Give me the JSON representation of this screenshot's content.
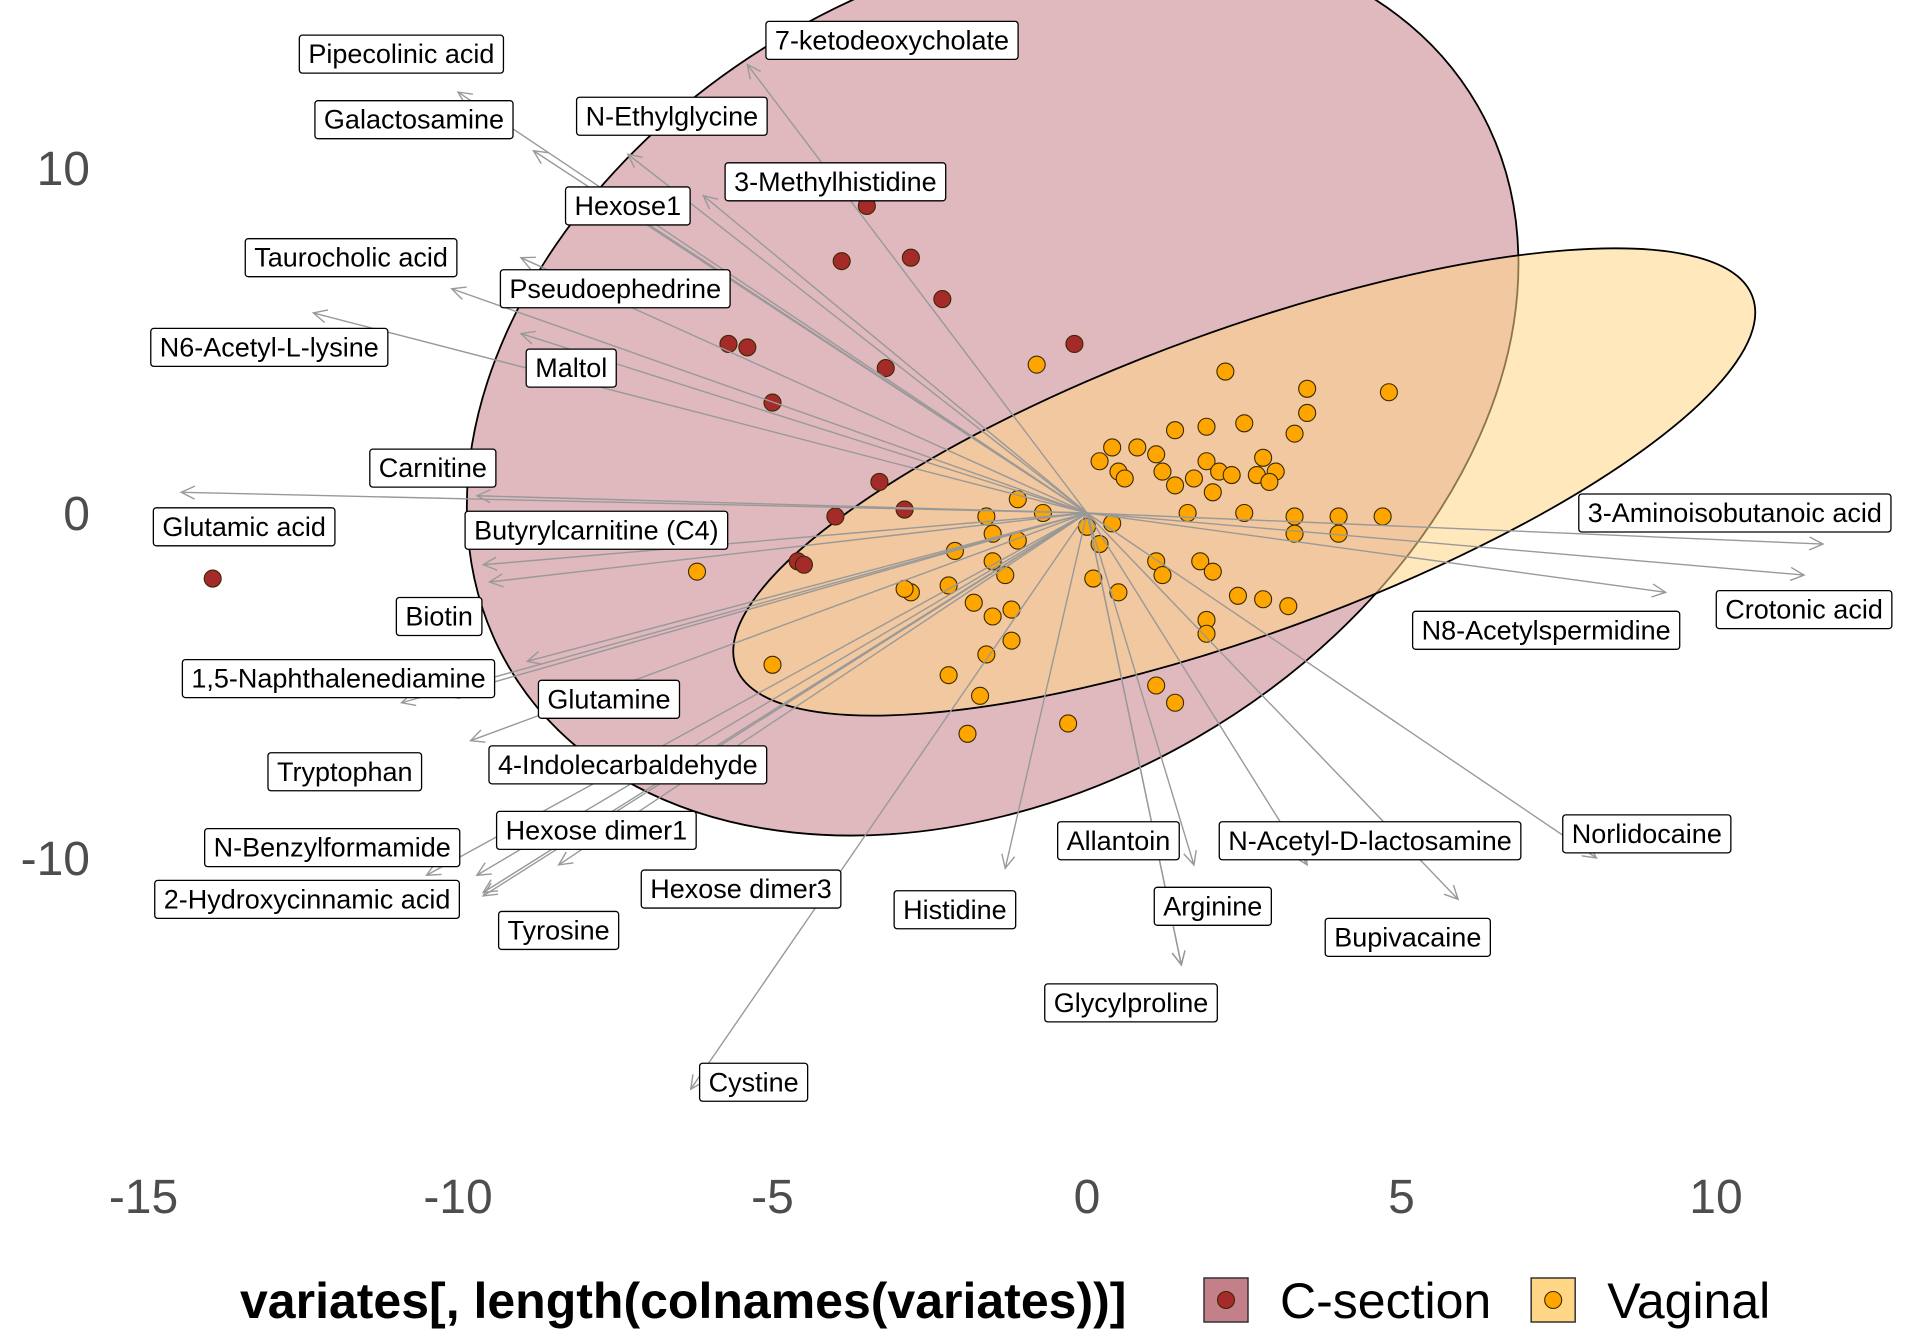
{
  "chart_data": {
    "type": "scatter",
    "title": "",
    "xlabel": "",
    "ylabel": "",
    "xlim": [
      -15.2,
      13
    ],
    "ylim": [
      -17.5,
      14.5
    ],
    "x_ticks": [
      -15,
      -10,
      -5,
      0,
      5,
      10
    ],
    "x_tick_labels": [
      "-15",
      "-10",
      "-5",
      "0",
      "5",
      "10"
    ],
    "y_ticks": [
      -10,
      0,
      10
    ],
    "y_tick_labels": [
      "-10",
      "0",
      "10"
    ],
    "grid": false,
    "legend": {
      "position": "bottom",
      "title": "variates[, length(colnames(variates))]",
      "entries": [
        "C-section",
        "Vaginal"
      ]
    },
    "colors": {
      "csection_point": "#a52a2a",
      "csection_ellipse": "#c48088",
      "vaginal_point": "#ffa500",
      "vaginal_ellipse": "#ffd685",
      "arrow": "#999999"
    },
    "ellipses": [
      {
        "name": "C-section",
        "cx": -1.5,
        "cy": 3.7,
        "rx": 8.9,
        "ry": 11.8,
        "angle_deg": 30
      },
      {
        "name": "Vaginal",
        "cx": 2.5,
        "cy": 0.9,
        "rx": 8.6,
        "ry": 4.4,
        "angle_deg": 20
      }
    ],
    "series": [
      {
        "name": "C-section",
        "points": [
          [
            -3.5,
            8.9
          ],
          [
            -3.9,
            7.3
          ],
          [
            -2.8,
            7.4
          ],
          [
            -2.3,
            6.2
          ],
          [
            -5.7,
            4.9
          ],
          [
            -5.4,
            4.8
          ],
          [
            -3.2,
            4.2
          ],
          [
            -0.2,
            4.9
          ],
          [
            -5.0,
            3.2
          ],
          [
            -3.3,
            0.9
          ],
          [
            -2.9,
            0.1
          ],
          [
            -4.0,
            -0.1
          ],
          [
            -4.6,
            -1.4
          ],
          [
            -4.5,
            -1.5
          ],
          [
            -13.9,
            -1.9
          ]
        ]
      },
      {
        "name": "Vaginal",
        "points": [
          [
            -0.8,
            4.3
          ],
          [
            2.2,
            4.1
          ],
          [
            3.5,
            3.6
          ],
          [
            4.8,
            3.5
          ],
          [
            3.5,
            2.9
          ],
          [
            2.5,
            2.6
          ],
          [
            1.4,
            2.4
          ],
          [
            1.9,
            2.5
          ],
          [
            3.3,
            2.3
          ],
          [
            0.4,
            1.9
          ],
          [
            0.8,
            1.9
          ],
          [
            1.1,
            1.7
          ],
          [
            1.9,
            1.5
          ],
          [
            2.8,
            1.6
          ],
          [
            0.2,
            1.5
          ],
          [
            0.5,
            1.2
          ],
          [
            1.2,
            1.2
          ],
          [
            2.1,
            1.2
          ],
          [
            2.7,
            1.1
          ],
          [
            3.0,
            1.2
          ],
          [
            0.6,
            1.0
          ],
          [
            1.7,
            1.0
          ],
          [
            2.3,
            1.1
          ],
          [
            1.4,
            0.8
          ],
          [
            2.9,
            0.9
          ],
          [
            2.0,
            0.6
          ],
          [
            -1.1,
            0.4
          ],
          [
            1.6,
            0.0
          ],
          [
            2.5,
            0.0
          ],
          [
            3.3,
            -0.1
          ],
          [
            4.0,
            -0.1
          ],
          [
            4.7,
            -0.1
          ],
          [
            0.4,
            -0.3
          ],
          [
            -1.6,
            -0.1
          ],
          [
            -1.5,
            -0.6
          ],
          [
            -1.1,
            -0.8
          ],
          [
            -0.7,
            0.0
          ],
          [
            3.3,
            -0.6
          ],
          [
            4.0,
            -0.6
          ],
          [
            0.0,
            -0.4
          ],
          [
            0.2,
            -0.9
          ],
          [
            -2.1,
            -1.1
          ],
          [
            -1.5,
            -1.4
          ],
          [
            1.1,
            -1.4
          ],
          [
            1.8,
            -1.4
          ],
          [
            2.0,
            -1.7
          ],
          [
            -6.2,
            -1.7
          ],
          [
            -2.2,
            -2.1
          ],
          [
            -1.3,
            -1.8
          ],
          [
            0.1,
            -1.9
          ],
          [
            -2.8,
            -2.3
          ],
          [
            -1.8,
            -2.6
          ],
          [
            -1.2,
            -2.8
          ],
          [
            -1.5,
            -3.0
          ],
          [
            0.5,
            -2.3
          ],
          [
            2.4,
            -2.4
          ],
          [
            1.2,
            -1.8
          ],
          [
            2.8,
            -2.5
          ],
          [
            -2.9,
            -2.2
          ],
          [
            3.2,
            -2.7
          ],
          [
            1.9,
            -3.1
          ],
          [
            1.9,
            -3.5
          ],
          [
            -1.2,
            -3.7
          ],
          [
            -1.6,
            -4.1
          ],
          [
            -5.0,
            -4.4
          ],
          [
            -2.2,
            -4.7
          ],
          [
            1.1,
            -5.0
          ],
          [
            -1.7,
            -5.3
          ],
          [
            1.4,
            -5.5
          ],
          [
            -1.9,
            -6.4
          ],
          [
            -0.3,
            -6.1
          ]
        ]
      }
    ],
    "variables": [
      {
        "name": "Pipecolinic acid",
        "arrow": [
          -10.0,
          12.2
        ],
        "label": [
          -10.9,
          13.3
        ]
      },
      {
        "name": "7-ketodeoxycholate",
        "arrow": [
          -5.4,
          13.0
        ],
        "label": [
          -3.1,
          13.7
        ]
      },
      {
        "name": "Galactosamine",
        "arrow": [
          -8.8,
          10.5
        ],
        "label": [
          -10.7,
          11.4
        ]
      },
      {
        "name": "N-Ethylglycine",
        "arrow": [
          -7.3,
          10.4
        ],
        "label": [
          -6.6,
          11.5
        ]
      },
      {
        "name": "3-Methylhistidine",
        "arrow": [
          -6.1,
          9.2
        ],
        "label": [
          -4.0,
          9.6
        ]
      },
      {
        "name": "Hexose1",
        "arrow": [
          -7.5,
          9.0
        ],
        "label": [
          -7.3,
          8.9
        ]
      },
      {
        "name": "Taurocholic acid",
        "arrow": [
          -10.1,
          6.5
        ],
        "label": [
          -11.7,
          7.4
        ]
      },
      {
        "name": "Pseudoephedrine",
        "arrow": [
          -9.0,
          7.4
        ],
        "label": [
          -7.5,
          6.5
        ]
      },
      {
        "name": "N6-Acetyl-L-lysine",
        "arrow": [
          -12.3,
          5.8
        ],
        "label": [
          -13.0,
          4.8
        ]
      },
      {
        "name": "Maltol",
        "arrow": [
          -9.0,
          5.2
        ],
        "label": [
          -8.2,
          4.2
        ]
      },
      {
        "name": "Carnitine",
        "arrow": [
          -9.7,
          0.5
        ],
        "label": [
          -10.4,
          1.3
        ]
      },
      {
        "name": "Glutamic acid",
        "arrow": [
          -14.4,
          0.6
        ],
        "label": [
          -13.4,
          -0.4
        ]
      },
      {
        "name": "Butyrylcarnitine (C4)",
        "arrow": [
          -9.6,
          -1.5
        ],
        "label": [
          -7.8,
          -0.5
        ]
      },
      {
        "name": "Biotin",
        "arrow": [
          -9.5,
          -2.0
        ],
        "label": [
          -10.3,
          -3.0
        ]
      },
      {
        "name": "1,5-Naphthalenediamine",
        "arrow": [
          -8.9,
          -4.3
        ],
        "label": [
          -11.9,
          -4.8
        ]
      },
      {
        "name": "Glutamine",
        "arrow": [
          -10.2,
          -5.3
        ],
        "label": [
          -7.6,
          -5.4
        ]
      },
      {
        "name": "Tryptophan",
        "arrow": [
          -10.9,
          -5.5
        ],
        "label": [
          -11.8,
          -7.5
        ]
      },
      {
        "name": "4-Indolecarbaldehyde",
        "arrow": [
          -9.8,
          -6.6
        ],
        "label": [
          -7.3,
          -7.3
        ]
      },
      {
        "name": "N-Benzylformamide",
        "arrow": [
          -10.5,
          -10.5
        ],
        "label": [
          -12.0,
          -9.7
        ]
      },
      {
        "name": "Hexose dimer1",
        "arrow": [
          -9.7,
          -10.5
        ],
        "label": [
          -7.8,
          -9.2
        ]
      },
      {
        "name": "2-Hydroxycinnamic acid",
        "arrow": [
          -9.6,
          -11.1
        ],
        "label": [
          -12.4,
          -11.2
        ]
      },
      {
        "name": "Hexose dimer3",
        "arrow": [
          -8.4,
          -10.2
        ],
        "label": [
          -5.5,
          -10.9
        ]
      },
      {
        "name": "Tyrosine",
        "arrow": [
          -9.6,
          -11.0
        ],
        "label": [
          -8.4,
          -12.1
        ]
      },
      {
        "name": "Histidine",
        "arrow": [
          -1.3,
          -10.3
        ],
        "label": [
          -2.1,
          -11.5
        ]
      },
      {
        "name": "Cystine",
        "arrow": [
          -6.3,
          -16.7
        ],
        "label": [
          -5.3,
          -16.5
        ]
      },
      {
        "name": "Allantoin",
        "arrow": [
          1.7,
          -10.2
        ],
        "label": [
          0.5,
          -9.5
        ]
      },
      {
        "name": "N-Acetyl-D-lactosamine",
        "arrow": [
          3.5,
          -10.2
        ],
        "label": [
          4.5,
          -9.5
        ]
      },
      {
        "name": "Norlidocaine",
        "arrow": [
          8.1,
          -10.0
        ],
        "label": [
          8.9,
          -9.3
        ]
      },
      {
        "name": "Arginine",
        "arrow": [
          1.5,
          -13.1
        ],
        "label": [
          2.0,
          -11.4
        ]
      },
      {
        "name": "Bupivacaine",
        "arrow": [
          5.9,
          -11.2
        ],
        "label": [
          5.1,
          -12.3
        ]
      },
      {
        "name": "Glycylproline",
        "arrow": [
          1.5,
          -13.1
        ],
        "label": [
          0.7,
          -14.2
        ]
      },
      {
        "name": "3-Aminoisobutanoic acid",
        "arrow": [
          11.7,
          -0.9
        ],
        "label": [
          10.3,
          0.0
        ]
      },
      {
        "name": "Crotonic acid",
        "arrow": [
          11.4,
          -1.8
        ],
        "label": [
          11.4,
          -2.8
        ]
      },
      {
        "name": "N8-Acetylspermidine",
        "arrow": [
          9.2,
          -2.3
        ],
        "label": [
          7.3,
          -3.4
        ]
      }
    ]
  }
}
